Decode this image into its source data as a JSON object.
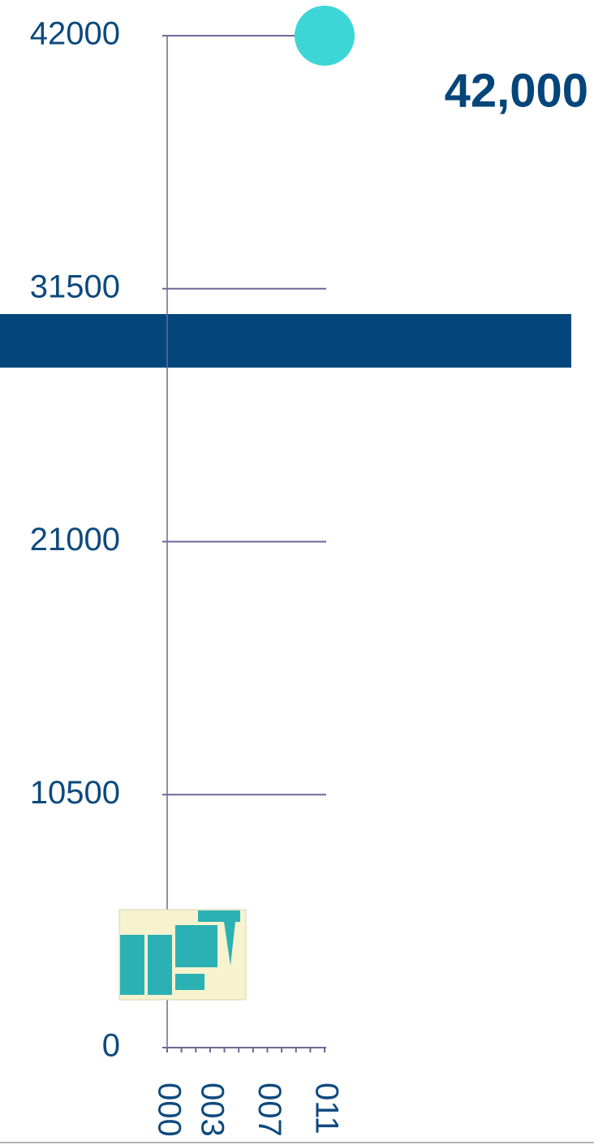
{
  "chart_data": {
    "type": "scatter",
    "x": [
      2011
    ],
    "values": [
      42000
    ],
    "value_labels": [
      "42,000"
    ],
    "color": "#3dd6d6",
    "xlim": [
      2000,
      2011
    ],
    "ylim": [
      0,
      42000
    ],
    "yticks": [
      0,
      10500,
      21000,
      31500,
      42000
    ],
    "xticks": [
      {
        "value": 2000,
        "label": "000"
      },
      {
        "value": 2003,
        "label": "003"
      },
      {
        "value": 2007,
        "label": "007"
      },
      {
        "value": 2011,
        "label": "011"
      }
    ],
    "xminor": [
      2000,
      2001,
      2002,
      2003,
      2004,
      2005,
      2006,
      2007,
      2008,
      2009,
      2010,
      2011
    ],
    "grid": true
  }
}
